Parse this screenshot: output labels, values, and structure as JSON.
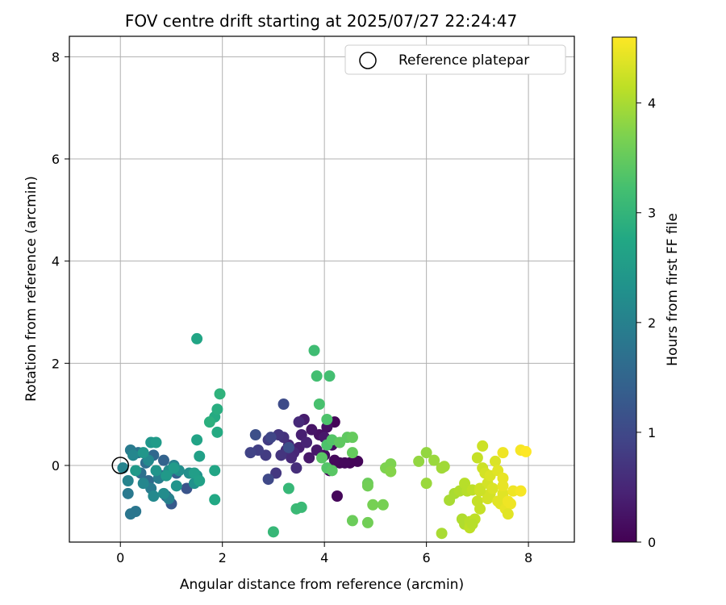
{
  "chart_data": {
    "type": "scatter",
    "title": "FOV centre drift starting at 2025/07/27 22:24:47",
    "xlabel": "Angular distance from reference (arcmin)",
    "ylabel": "Rotation from reference (arcmin)",
    "xlim": [
      -1.0,
      8.9
    ],
    "ylim": [
      -1.5,
      8.4
    ],
    "xticks": [
      0,
      2,
      4,
      6,
      8
    ],
    "yticks": [
      0,
      2,
      4,
      6,
      8
    ],
    "grid": true,
    "legend": {
      "position": "top-right",
      "entries": [
        "Reference platepar"
      ]
    },
    "reference_point": {
      "x": 0,
      "y": 0,
      "label": "Reference platepar"
    },
    "colorbar": {
      "label": "Hours from first FF file",
      "colormap": "viridis",
      "range": [
        0,
        4.6
      ],
      "ticks": [
        0,
        1,
        2,
        3,
        4
      ]
    },
    "series": [
      {
        "color_by": "hours",
        "points": [
          {
            "x": 4.2,
            "y": 0.85,
            "h": 0.05
          },
          {
            "x": 4.5,
            "y": 0.05,
            "h": 0.05
          },
          {
            "x": 4.65,
            "y": 0.08,
            "h": 0.05
          },
          {
            "x": 4.3,
            "y": 0.05,
            "h": 0.06
          },
          {
            "x": 4.1,
            "y": -0.1,
            "h": 0.08
          },
          {
            "x": 4.25,
            "y": -0.6,
            "h": 0.08
          },
          {
            "x": 4.2,
            "y": 0.1,
            "h": 0.1
          },
          {
            "x": 4.4,
            "y": 0.05,
            "h": 0.1
          },
          {
            "x": 4.0,
            "y": 0.2,
            "h": 0.15
          },
          {
            "x": 4.15,
            "y": 0.4,
            "h": 0.15
          },
          {
            "x": 3.9,
            "y": 0.6,
            "h": 0.2
          },
          {
            "x": 4.05,
            "y": 0.75,
            "h": 0.2
          },
          {
            "x": 3.75,
            "y": 0.7,
            "h": 0.25
          },
          {
            "x": 3.85,
            "y": 0.3,
            "h": 0.3
          },
          {
            "x": 3.7,
            "y": 0.15,
            "h": 0.3
          },
          {
            "x": 4.0,
            "y": 0.55,
            "h": 0.3
          },
          {
            "x": 3.6,
            "y": 0.9,
            "h": 0.35
          },
          {
            "x": 3.55,
            "y": 0.6,
            "h": 0.4
          },
          {
            "x": 3.5,
            "y": 0.35,
            "h": 0.4
          },
          {
            "x": 3.65,
            "y": 0.45,
            "h": 0.45
          },
          {
            "x": 3.4,
            "y": 0.25,
            "h": 0.5
          },
          {
            "x": 3.3,
            "y": 0.4,
            "h": 0.5
          },
          {
            "x": 3.5,
            "y": 0.85,
            "h": 0.55
          },
          {
            "x": 3.35,
            "y": 0.15,
            "h": 0.55
          },
          {
            "x": 3.45,
            "y": -0.05,
            "h": 0.6
          },
          {
            "x": 3.25,
            "y": 0.3,
            "h": 0.6
          },
          {
            "x": 3.2,
            "y": 0.55,
            "h": 0.65
          },
          {
            "x": 3.1,
            "y": 0.6,
            "h": 0.7
          },
          {
            "x": 3.15,
            "y": 0.2,
            "h": 0.7
          },
          {
            "x": 3.05,
            "y": -0.15,
            "h": 0.75
          },
          {
            "x": 2.9,
            "y": 0.5,
            "h": 0.8
          },
          {
            "x": 2.85,
            "y": 0.2,
            "h": 0.8
          },
          {
            "x": 2.7,
            "y": 0.3,
            "h": 0.85
          },
          {
            "x": 2.55,
            "y": 0.25,
            "h": 0.9
          },
          {
            "x": 2.95,
            "y": 0.55,
            "h": 0.95
          },
          {
            "x": 2.9,
            "y": -0.27,
            "h": 1.0
          },
          {
            "x": 3.2,
            "y": 1.2,
            "h": 1.05
          },
          {
            "x": 2.65,
            "y": 0.6,
            "h": 1.1
          },
          {
            "x": 3.3,
            "y": 0.35,
            "h": 1.1
          },
          {
            "x": 1.3,
            "y": -0.45,
            "h": 1.2
          },
          {
            "x": 1.0,
            "y": -0.75,
            "h": 1.3
          },
          {
            "x": 0.9,
            "y": -0.6,
            "h": 1.35
          },
          {
            "x": 1.1,
            "y": -0.15,
            "h": 1.4
          },
          {
            "x": 0.85,
            "y": 0.1,
            "h": 1.45
          },
          {
            "x": 0.8,
            "y": -0.2,
            "h": 1.5
          },
          {
            "x": 0.65,
            "y": 0.2,
            "h": 1.55
          },
          {
            "x": 0.55,
            "y": -0.3,
            "h": 1.6
          },
          {
            "x": 0.5,
            "y": 0.05,
            "h": 1.65
          },
          {
            "x": 0.4,
            "y": -0.15,
            "h": 1.7
          },
          {
            "x": 0.35,
            "y": 0.25,
            "h": 1.75
          },
          {
            "x": 0.3,
            "y": -0.9,
            "h": 1.8
          },
          {
            "x": 0.2,
            "y": -0.95,
            "h": 1.8
          },
          {
            "x": 0.15,
            "y": -0.55,
            "h": 1.85
          },
          {
            "x": 0.2,
            "y": 0.3,
            "h": 1.9
          },
          {
            "x": 0.6,
            "y": -0.45,
            "h": 1.9
          },
          {
            "x": 0.75,
            "y": -0.25,
            "h": 1.95
          },
          {
            "x": 0.95,
            "y": -0.65,
            "h": 2.0
          },
          {
            "x": 1.05,
            "y": 0.0,
            "h": 2.0
          },
          {
            "x": 0.05,
            "y": -0.05,
            "h": 2.05
          },
          {
            "x": 0.15,
            "y": -0.3,
            "h": 2.05
          },
          {
            "x": 0.25,
            "y": 0.2,
            "h": 2.1
          },
          {
            "x": 0.45,
            "y": -0.35,
            "h": 2.1
          },
          {
            "x": 0.55,
            "y": 0.1,
            "h": 2.15
          },
          {
            "x": 0.65,
            "y": -0.6,
            "h": 2.15
          },
          {
            "x": 0.85,
            "y": -0.55,
            "h": 2.2
          },
          {
            "x": 0.95,
            "y": -0.1,
            "h": 2.2
          },
          {
            "x": 1.15,
            "y": -0.1,
            "h": 2.25
          },
          {
            "x": 1.35,
            "y": -0.15,
            "h": 2.25
          },
          {
            "x": 1.45,
            "y": -0.35,
            "h": 2.3
          },
          {
            "x": 1.5,
            "y": -0.2,
            "h": 2.3
          },
          {
            "x": 1.1,
            "y": -0.4,
            "h": 2.35
          },
          {
            "x": 0.7,
            "y": -0.1,
            "h": 2.35
          },
          {
            "x": 0.6,
            "y": 0.45,
            "h": 2.4
          },
          {
            "x": 0.45,
            "y": 0.25,
            "h": 2.4
          },
          {
            "x": 0.3,
            "y": -0.1,
            "h": 2.45
          },
          {
            "x": 0.9,
            "y": -0.2,
            "h": 2.45
          },
          {
            "x": 1.05,
            "y": -0.05,
            "h": 2.5
          },
          {
            "x": 0.7,
            "y": 0.45,
            "h": 2.5
          },
          {
            "x": 1.45,
            "y": -0.15,
            "h": 2.55
          },
          {
            "x": 1.55,
            "y": -0.3,
            "h": 2.6
          },
          {
            "x": 1.55,
            "y": 0.18,
            "h": 2.6
          },
          {
            "x": 1.5,
            "y": 0.5,
            "h": 2.65
          },
          {
            "x": 1.5,
            "y": 2.48,
            "h": 2.7
          },
          {
            "x": 1.85,
            "y": -0.1,
            "h": 2.7
          },
          {
            "x": 1.85,
            "y": -0.67,
            "h": 2.75
          },
          {
            "x": 1.9,
            "y": 0.65,
            "h": 2.8
          },
          {
            "x": 1.85,
            "y": 0.95,
            "h": 2.8
          },
          {
            "x": 1.9,
            "y": 1.1,
            "h": 2.85
          },
          {
            "x": 1.75,
            "y": 0.85,
            "h": 2.9
          },
          {
            "x": 1.95,
            "y": 1.4,
            "h": 2.95
          },
          {
            "x": 3.0,
            "y": -1.3,
            "h": 3.05
          },
          {
            "x": 3.3,
            "y": -0.45,
            "h": 3.05
          },
          {
            "x": 3.45,
            "y": -0.85,
            "h": 3.1
          },
          {
            "x": 3.55,
            "y": -0.82,
            "h": 3.1
          },
          {
            "x": 3.8,
            "y": 2.25,
            "h": 3.15
          },
          {
            "x": 3.85,
            "y": 1.75,
            "h": 3.2
          },
          {
            "x": 4.1,
            "y": 1.75,
            "h": 3.2
          },
          {
            "x": 3.9,
            "y": 1.2,
            "h": 3.25
          },
          {
            "x": 4.05,
            "y": 0.9,
            "h": 3.3
          },
          {
            "x": 4.05,
            "y": 0.4,
            "h": 3.3
          },
          {
            "x": 4.15,
            "y": 0.5,
            "h": 3.35
          },
          {
            "x": 4.05,
            "y": -0.05,
            "h": 3.35
          },
          {
            "x": 3.95,
            "y": 0.15,
            "h": 3.4
          },
          {
            "x": 4.15,
            "y": -0.1,
            "h": 3.4
          },
          {
            "x": 4.3,
            "y": 0.45,
            "h": 3.45
          },
          {
            "x": 4.45,
            "y": 0.55,
            "h": 3.45
          },
          {
            "x": 4.55,
            "y": 0.55,
            "h": 3.5
          },
          {
            "x": 4.55,
            "y": 0.25,
            "h": 3.5
          },
          {
            "x": 4.55,
            "y": -1.08,
            "h": 3.55
          },
          {
            "x": 4.85,
            "y": -0.35,
            "h": 3.55
          },
          {
            "x": 4.85,
            "y": -0.4,
            "h": 3.6
          },
          {
            "x": 4.85,
            "y": -1.12,
            "h": 3.6
          },
          {
            "x": 4.95,
            "y": -0.77,
            "h": 3.65
          },
          {
            "x": 5.15,
            "y": -0.77,
            "h": 3.65
          },
          {
            "x": 5.2,
            "y": -0.05,
            "h": 3.7
          },
          {
            "x": 5.3,
            "y": 0.03,
            "h": 3.7
          },
          {
            "x": 5.3,
            "y": -0.12,
            "h": 3.75
          },
          {
            "x": 5.85,
            "y": 0.08,
            "h": 3.85
          },
          {
            "x": 6.0,
            "y": 0.25,
            "h": 3.85
          },
          {
            "x": 6.0,
            "y": -0.35,
            "h": 3.9
          },
          {
            "x": 6.15,
            "y": 0.1,
            "h": 3.9
          },
          {
            "x": 6.3,
            "y": -0.05,
            "h": 3.95
          },
          {
            "x": 6.35,
            "y": -0.02,
            "h": 3.95
          },
          {
            "x": 6.3,
            "y": -1.33,
            "h": 4.0
          },
          {
            "x": 6.45,
            "y": -0.68,
            "h": 4.0
          },
          {
            "x": 6.55,
            "y": -0.55,
            "h": 4.0
          },
          {
            "x": 6.65,
            "y": -0.5,
            "h": 4.05
          },
          {
            "x": 6.7,
            "y": -1.05,
            "h": 4.05
          },
          {
            "x": 6.75,
            "y": -1.15,
            "h": 4.05
          },
          {
            "x": 6.75,
            "y": -0.35,
            "h": 4.1
          },
          {
            "x": 6.8,
            "y": -0.5,
            "h": 4.1
          },
          {
            "x": 6.85,
            "y": -1.1,
            "h": 4.1
          },
          {
            "x": 6.85,
            "y": -1.22,
            "h": 4.15
          },
          {
            "x": 6.9,
            "y": -0.48,
            "h": 4.15
          },
          {
            "x": 6.95,
            "y": -1.05,
            "h": 4.15
          },
          {
            "x": 7.0,
            "y": 0.15,
            "h": 4.2
          },
          {
            "x": 7.0,
            "y": -0.7,
            "h": 4.2
          },
          {
            "x": 7.05,
            "y": -0.85,
            "h": 4.2
          },
          {
            "x": 7.05,
            "y": -0.45,
            "h": 4.25
          },
          {
            "x": 7.1,
            "y": 0.38,
            "h": 4.25
          },
          {
            "x": 7.1,
            "y": -0.05,
            "h": 4.25
          },
          {
            "x": 7.15,
            "y": -0.15,
            "h": 4.3
          },
          {
            "x": 7.2,
            "y": -0.65,
            "h": 4.3
          },
          {
            "x": 7.2,
            "y": -0.35,
            "h": 4.3
          },
          {
            "x": 7.25,
            "y": -0.55,
            "h": 4.3
          },
          {
            "x": 7.25,
            "y": -0.2,
            "h": 4.35
          },
          {
            "x": 7.3,
            "y": -0.45,
            "h": 4.35
          },
          {
            "x": 7.35,
            "y": 0.08,
            "h": 4.35
          },
          {
            "x": 7.4,
            "y": -0.7,
            "h": 4.4
          },
          {
            "x": 7.4,
            "y": -0.1,
            "h": 4.4
          },
          {
            "x": 7.45,
            "y": -0.75,
            "h": 4.4
          },
          {
            "x": 7.5,
            "y": -0.55,
            "h": 4.4
          },
          {
            "x": 7.5,
            "y": -0.25,
            "h": 4.45
          },
          {
            "x": 7.55,
            "y": -0.85,
            "h": 4.45
          },
          {
            "x": 7.5,
            "y": -0.4,
            "h": 4.45
          },
          {
            "x": 7.6,
            "y": -0.7,
            "h": 4.5
          },
          {
            "x": 7.65,
            "y": -0.75,
            "h": 4.5
          },
          {
            "x": 7.5,
            "y": 0.25,
            "h": 4.5
          },
          {
            "x": 7.7,
            "y": -0.5,
            "h": 4.5
          },
          {
            "x": 7.85,
            "y": -0.5,
            "h": 4.55
          },
          {
            "x": 7.85,
            "y": 0.3,
            "h": 4.55
          },
          {
            "x": 7.95,
            "y": 0.27,
            "h": 4.6
          },
          {
            "x": 7.05,
            "y": -0.5,
            "h": 4.25
          },
          {
            "x": 6.9,
            "y": -1.15,
            "h": 4.1
          },
          {
            "x": 7.6,
            "y": -0.95,
            "h": 4.4
          }
        ]
      }
    ]
  }
}
